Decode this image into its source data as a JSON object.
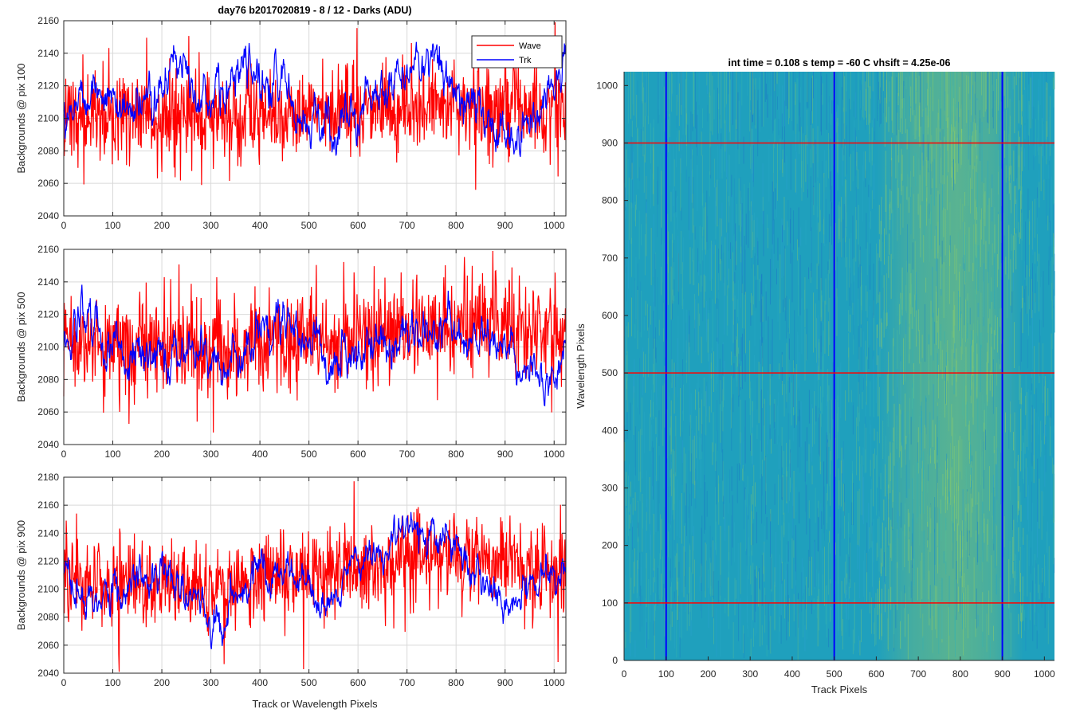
{
  "figure": {
    "title": "day76 b2017020819 - 8 / 12 - Darks (ADU)",
    "shared_xlabel": "Track or Wavelength Pixels"
  },
  "colors": {
    "wave": "#ff0000",
    "trk": "#0000ff",
    "grid": "#d9d9d9",
    "axis": "#262626",
    "image_base": "#1fa0bd",
    "image_highlight": "#8ec46a",
    "image_shadow": "#1f78c8"
  },
  "chart_data": [
    {
      "type": "line",
      "ylabel": "Backgrounds @ pix 100",
      "xlim": [
        0,
        1024
      ],
      "ylim": [
        2040,
        2160
      ],
      "xticks": [
        0,
        100,
        200,
        300,
        400,
        500,
        600,
        700,
        800,
        900,
        1000
      ],
      "yticks": [
        2040,
        2060,
        2080,
        2100,
        2120,
        2140,
        2160
      ],
      "grid": true,
      "legend": "top-right",
      "series": [
        {
          "name": "Wave",
          "color": "#ff0000",
          "n": 1024,
          "mean": 2103,
          "noise": 17,
          "trend": [
            [
              0,
              2100
            ],
            [
              300,
              2101
            ],
            [
              600,
              2105
            ],
            [
              1024,
              2107
            ]
          ]
        },
        {
          "name": "Trk",
          "color": "#0000ff",
          "n": 1024,
          "mean": 2112,
          "noise": 8,
          "trend": [
            [
              0,
              2108
            ],
            [
              60,
              2120
            ],
            [
              150,
              2100
            ],
            [
              250,
              2140
            ],
            [
              300,
              2108
            ],
            [
              380,
              2130
            ],
            [
              440,
              2120
            ],
            [
              470,
              2108
            ],
            [
              550,
              2090
            ],
            [
              600,
              2105
            ],
            [
              680,
              2125
            ],
            [
              760,
              2138
            ],
            [
              800,
              2122
            ],
            [
              900,
              2086
            ],
            [
              1000,
              2112
            ],
            [
              1024,
              2140
            ]
          ]
        }
      ]
    },
    {
      "type": "line",
      "ylabel": "Backgrounds @ pix 500",
      "xlim": [
        0,
        1024
      ],
      "ylim": [
        2040,
        2160
      ],
      "xticks": [
        0,
        100,
        200,
        300,
        400,
        500,
        600,
        700,
        800,
        900,
        1000
      ],
      "yticks": [
        2040,
        2060,
        2080,
        2100,
        2120,
        2140,
        2160
      ],
      "grid": true,
      "series": [
        {
          "name": "Wave",
          "color": "#ff0000",
          "n": 1024,
          "mean": 2103,
          "noise": 17,
          "trend": [
            [
              0,
              2105
            ],
            [
              300,
              2100
            ],
            [
              600,
              2105
            ],
            [
              800,
              2115
            ],
            [
              1024,
              2106
            ]
          ]
        },
        {
          "name": "Trk",
          "color": "#0000ff",
          "n": 1024,
          "mean": 2102,
          "noise": 8,
          "trend": [
            [
              0,
              2100
            ],
            [
              60,
              2125
            ],
            [
              130,
              2092
            ],
            [
              250,
              2100
            ],
            [
              330,
              2085
            ],
            [
              430,
              2120
            ],
            [
              500,
              2105
            ],
            [
              560,
              2088
            ],
            [
              600,
              2098
            ],
            [
              650,
              2108
            ],
            [
              780,
              2112
            ],
            [
              900,
              2102
            ],
            [
              980,
              2075
            ],
            [
              1024,
              2098
            ]
          ]
        }
      ]
    },
    {
      "type": "line",
      "ylabel": "Backgrounds @ pix 900",
      "xlim": [
        0,
        1024
      ],
      "ylim": [
        2040,
        2180
      ],
      "xticks": [
        0,
        100,
        200,
        300,
        400,
        500,
        600,
        700,
        800,
        900,
        1000
      ],
      "yticks": [
        2040,
        2060,
        2080,
        2100,
        2120,
        2140,
        2160,
        2180
      ],
      "grid": true,
      "series": [
        {
          "name": "Wave",
          "color": "#ff0000",
          "n": 1024,
          "mean": 2108,
          "noise": 18,
          "trend": [
            [
              0,
              2104
            ],
            [
              300,
              2100
            ],
            [
              600,
              2115
            ],
            [
              850,
              2125
            ],
            [
              1024,
              2108
            ]
          ]
        },
        {
          "name": "Trk",
          "color": "#0000ff",
          "n": 1024,
          "mean": 2105,
          "noise": 8,
          "trend": [
            [
              0,
              2105
            ],
            [
              60,
              2090
            ],
            [
              200,
              2115
            ],
            [
              300,
              2075
            ],
            [
              380,
              2110
            ],
            [
              450,
              2108
            ],
            [
              530,
              2092
            ],
            [
              600,
              2112
            ],
            [
              720,
              2145
            ],
            [
              800,
              2125
            ],
            [
              900,
              2090
            ],
            [
              1024,
              2112
            ]
          ]
        }
      ]
    },
    {
      "type": "heatmap",
      "title": "int time = 0.108 s   temp = -60 C   vhsift = 4.25e-06",
      "xlabel": "Track Pixels",
      "ylabel": "Wavelength Pixels",
      "xlim": [
        0,
        1024
      ],
      "ylim": [
        0,
        1024
      ],
      "xticks": [
        0,
        100,
        200,
        300,
        400,
        500,
        600,
        700,
        800,
        900,
        1000
      ],
      "yticks": [
        0,
        100,
        200,
        300,
        400,
        500,
        600,
        700,
        800,
        900,
        1000
      ],
      "vertical_markers": [
        100,
        500,
        900
      ],
      "horizontal_markers": [
        100,
        500,
        900
      ],
      "vertical_marker_color": "#0000ff",
      "horizontal_marker_color": "#ff0000",
      "brighter_region": [
        600,
        950
      ]
    }
  ]
}
